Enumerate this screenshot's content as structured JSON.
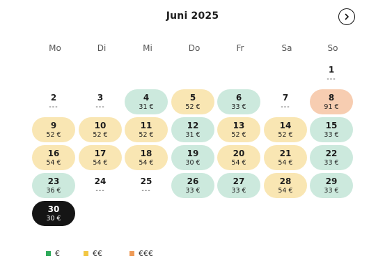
{
  "header": {
    "month_title": "Juni 2025",
    "next_icon": "chevron-right-icon"
  },
  "weekdays": [
    "Mo",
    "Di",
    "Mi",
    "Do",
    "Fr",
    "Sa",
    "So"
  ],
  "colors": {
    "green": "#cce9dd",
    "yellow": "#f9e6b3",
    "orange": "#f7cdb1",
    "selected": "#151515",
    "legend_green": "#2eaa5a",
    "legend_yellow": "#f2c744",
    "legend_orange": "#ee9a57"
  },
  "days": [
    {
      "day": "1",
      "price": "---",
      "level": "none"
    },
    {
      "day": "2",
      "price": "---",
      "level": "none"
    },
    {
      "day": "3",
      "price": "---",
      "level": "none"
    },
    {
      "day": "4",
      "price": "31 €",
      "level": "green"
    },
    {
      "day": "5",
      "price": "52 €",
      "level": "yellow"
    },
    {
      "day": "6",
      "price": "33 €",
      "level": "green"
    },
    {
      "day": "7",
      "price": "---",
      "level": "none"
    },
    {
      "day": "8",
      "price": "91 €",
      "level": "orange"
    },
    {
      "day": "9",
      "price": "52 €",
      "level": "yellow"
    },
    {
      "day": "10",
      "price": "52 €",
      "level": "yellow"
    },
    {
      "day": "11",
      "price": "52 €",
      "level": "yellow"
    },
    {
      "day": "12",
      "price": "31 €",
      "level": "green"
    },
    {
      "day": "13",
      "price": "52 €",
      "level": "yellow"
    },
    {
      "day": "14",
      "price": "52 €",
      "level": "yellow"
    },
    {
      "day": "15",
      "price": "33 €",
      "level": "green"
    },
    {
      "day": "16",
      "price": "54 €",
      "level": "yellow"
    },
    {
      "day": "17",
      "price": "54 €",
      "level": "yellow"
    },
    {
      "day": "18",
      "price": "54 €",
      "level": "yellow"
    },
    {
      "day": "19",
      "price": "30 €",
      "level": "green"
    },
    {
      "day": "20",
      "price": "54 €",
      "level": "yellow"
    },
    {
      "day": "21",
      "price": "54 €",
      "level": "yellow"
    },
    {
      "day": "22",
      "price": "33 €",
      "level": "green"
    },
    {
      "day": "23",
      "price": "36 €",
      "level": "green"
    },
    {
      "day": "24",
      "price": "---",
      "level": "none"
    },
    {
      "day": "25",
      "price": "---",
      "level": "none"
    },
    {
      "day": "26",
      "price": "33 €",
      "level": "green"
    },
    {
      "day": "27",
      "price": "33 €",
      "level": "green"
    },
    {
      "day": "28",
      "price": "54 €",
      "level": "yellow"
    },
    {
      "day": "29",
      "price": "33 €",
      "level": "green"
    },
    {
      "day": "30",
      "price": "30 €",
      "level": "selected"
    }
  ],
  "legend": [
    {
      "label": "€",
      "color_key": "legend_green"
    },
    {
      "label": "€€",
      "color_key": "legend_yellow"
    },
    {
      "label": "€€€",
      "color_key": "legend_orange"
    }
  ]
}
